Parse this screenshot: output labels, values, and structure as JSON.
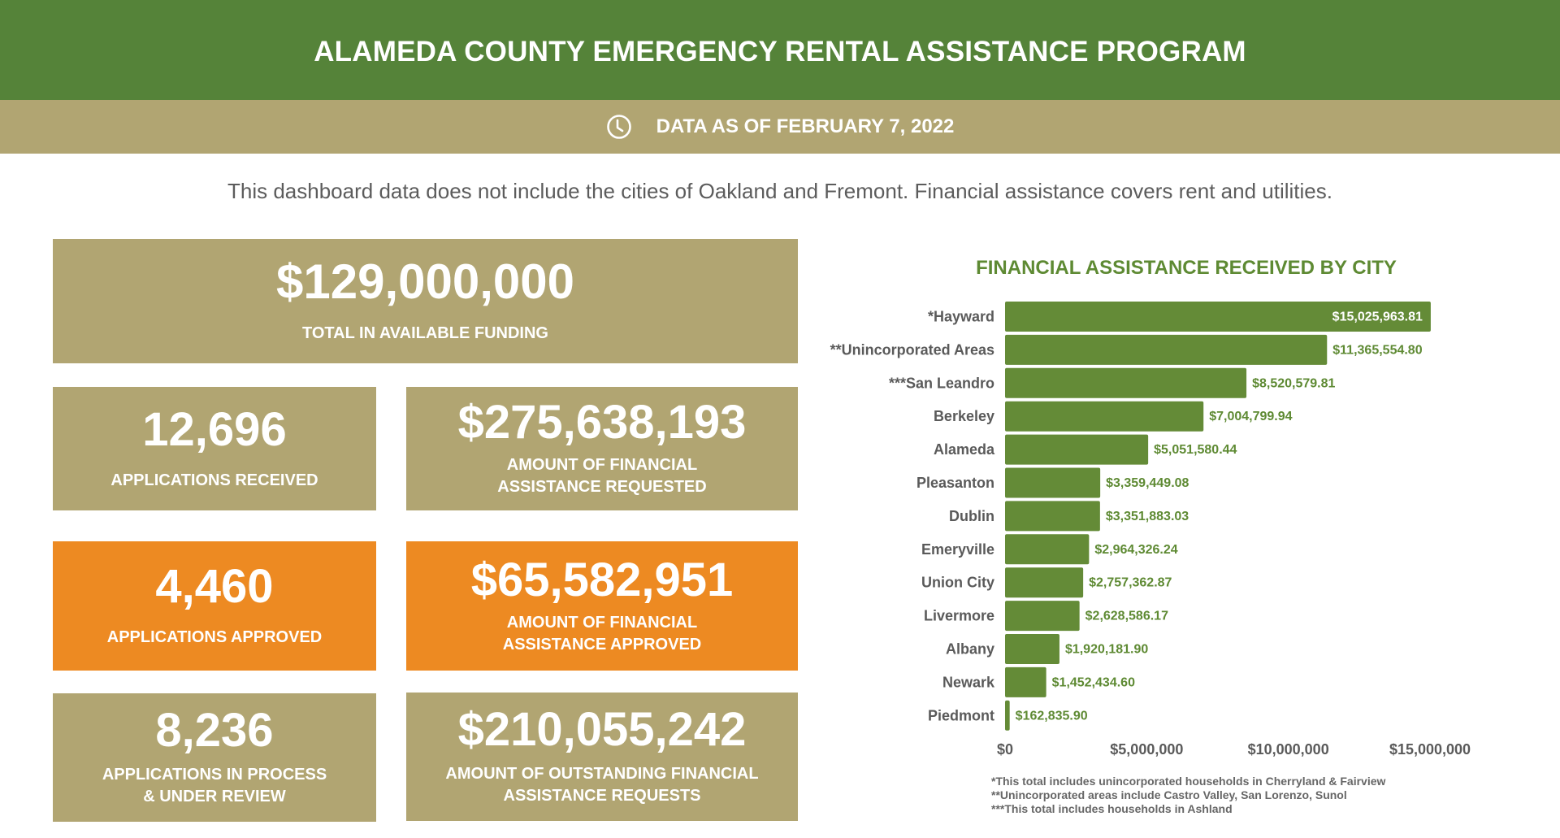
{
  "header": {
    "title": "ALAMEDA COUNTY EMERGENCY RENTAL ASSISTANCE PROGRAM",
    "date_icon": "clock-icon",
    "date_text": "DATA AS OF FEBRUARY 7, 2022"
  },
  "note": "This dashboard data does not include the cities of Oakland and Fremont. Financial assistance covers rent and utilities.",
  "colors": {
    "header_green": "#558339",
    "tan": "#b1a572",
    "orange": "#ed8a22",
    "bar_green": "#648b37"
  },
  "stats": {
    "total_funding": {
      "value": "$129,000,000",
      "label": "TOTAL IN AVAILABLE FUNDING"
    },
    "applications_received": {
      "value": "12,696",
      "label": "APPLICATIONS RECEIVED"
    },
    "amount_requested": {
      "value": "$275,638,193",
      "label_1": "AMOUNT OF FINANCIAL",
      "label_2": "ASSISTANCE REQUESTED"
    },
    "applications_approved": {
      "value": "4,460",
      "label": "APPLICATIONS APPROVED"
    },
    "amount_approved": {
      "value": "$65,582,951",
      "label_1": "AMOUNT OF FINANCIAL",
      "label_2": "ASSISTANCE APPROVED"
    },
    "applications_in_process": {
      "value": "8,236",
      "label_1": "APPLICATIONS IN PROCESS",
      "label_2": "& UNDER REVIEW"
    },
    "amount_outstanding": {
      "value": "$210,055,242",
      "label_1": "AMOUNT OF OUTSTANDING FINANCIAL",
      "label_2": "ASSISTANCE REQUESTS"
    }
  },
  "chart_data": {
    "type": "bar",
    "orientation": "horizontal",
    "title": "FINANCIAL ASSISTANCE RECEIVED BY CITY",
    "xlabel": "",
    "ylabel": "",
    "categories": [
      "*Hayward",
      "**Unincorporated Areas",
      "***San Leandro",
      "Berkeley",
      "Alameda",
      "Pleasanton",
      "Dublin",
      "Emeryville",
      "Union City",
      "Livermore",
      "Albany",
      "Newark",
      "Piedmont"
    ],
    "values": [
      15025963.81,
      11365554.8,
      8520579.81,
      7004799.94,
      5051580.44,
      3359449.08,
      3351883.03,
      2964326.24,
      2757362.87,
      2628586.17,
      1920181.9,
      1452434.6,
      162835.9
    ],
    "value_labels": [
      "$15,025,963.81",
      "$11,365,554.80",
      "$8,520,579.81",
      "$7,004,799.94",
      "$5,051,580.44",
      "$3,359,449.08",
      "$3,351,883.03",
      "$2,964,326.24",
      "$2,757,362.87",
      "$2,628,586.17",
      "$1,920,181.90",
      "$1,452,434.60",
      "$162,835.90"
    ],
    "xlim": [
      0,
      15000000
    ],
    "xticks": [
      0,
      5000000,
      10000000,
      15000000
    ],
    "xtick_labels": [
      "$0",
      "$5,000,000",
      "$10,000,000",
      "$15,000,000"
    ],
    "grid": false,
    "legend": "none",
    "footnotes": [
      "*This total includes unincorporated households in Cherryland & Fairview",
      "**Unincorporated areas include Castro Valley, San Lorenzo, Sunol",
      "***This total includes households in Ashland"
    ]
  }
}
